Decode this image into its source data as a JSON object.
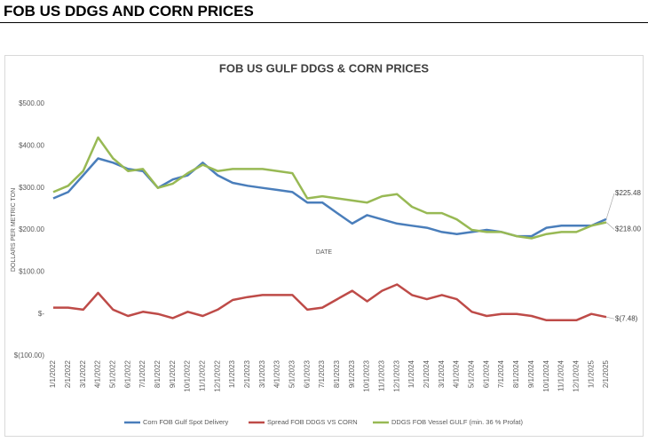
{
  "header": {
    "title": "FOB US DDGS AND CORN PRICES"
  },
  "chart_data": {
    "type": "line",
    "title": "FOB US GULF DDGS & CORN PRICES",
    "x_label": "DATE",
    "y_label": "DOLLARS PER METRIC TON",
    "categories": [
      "1/1/2022",
      "2/1/2022",
      "3/1/2022",
      "4/1/2022",
      "5/1/2022",
      "6/1/2022",
      "7/1/2022",
      "8/1/2022",
      "9/1/2022",
      "10/1/2022",
      "11/1/2022",
      "12/1/2022",
      "1/1/2023",
      "2/1/2023",
      "3/1/2023",
      "4/1/2023",
      "5/1/2023",
      "6/1/2023",
      "7/1/2023",
      "8/1/2023",
      "9/1/2023",
      "10/1/2023",
      "11/1/2023",
      "12/1/2023",
      "1/1/2024",
      "2/1/2024",
      "3/1/2024",
      "4/1/2024",
      "5/1/2024",
      "6/1/2024",
      "7/1/2024",
      "8/1/2024",
      "9/1/2024",
      "10/1/2024",
      "11/1/2024",
      "12/1/2024",
      "1/1/2025",
      "2/1/2025"
    ],
    "series": [
      {
        "name": "Corn FOB Gulf Spot Delivery",
        "color": "#4a7ebb",
        "values": [
          275,
          290,
          330,
          370,
          360,
          345,
          340,
          300,
          320,
          330,
          360,
          330,
          312,
          305,
          300,
          295,
          290,
          265,
          265,
          240,
          215,
          235,
          225,
          215,
          210,
          205,
          195,
          190,
          195,
          200,
          195,
          185,
          185,
          205,
          210,
          210,
          210,
          225.48
        ]
      },
      {
        "name": "Spread FOB DDGS VS CORN",
        "color": "#be4b48",
        "values": [
          15,
          15,
          10,
          50,
          10,
          -5,
          5,
          0,
          -10,
          5,
          -5,
          10,
          33,
          40,
          45,
          45,
          45,
          10,
          15,
          35,
          55,
          30,
          55,
          70,
          45,
          35,
          45,
          35,
          5,
          -5,
          0,
          0,
          -5,
          -15,
          -15,
          -15,
          0,
          -7.48
        ]
      },
      {
        "name": "DDGS FOB Vessel GULF (min. 36 % Profat)",
        "color": "#98b954",
        "values": [
          290,
          305,
          340,
          420,
          370,
          340,
          345,
          300,
          310,
          335,
          355,
          340,
          345,
          345,
          345,
          340,
          335,
          275,
          280,
          275,
          270,
          265,
          280,
          285,
          255,
          240,
          240,
          225,
          200,
          195,
          195,
          185,
          180,
          190,
          195,
          195,
          210,
          218
        ]
      }
    ],
    "annotations": [
      {
        "text": "$225.48",
        "series": 0
      },
      {
        "text": "$218.00",
        "series": 2
      },
      {
        "text": "$(7.48)",
        "series": 1
      }
    ],
    "ylim": [
      -100,
      500
    ],
    "yticks": [
      {
        "value": -100,
        "label": "$(100.00)"
      },
      {
        "value": 0,
        "label": "$-"
      },
      {
        "value": 100,
        "label": "$100.00"
      },
      {
        "value": 200,
        "label": "$200.00"
      },
      {
        "value": 300,
        "label": "$300.00"
      },
      {
        "value": 400,
        "label": "$400.00"
      },
      {
        "value": 500,
        "label": "$500.00"
      }
    ],
    "grid": false,
    "legend": "bottom"
  }
}
